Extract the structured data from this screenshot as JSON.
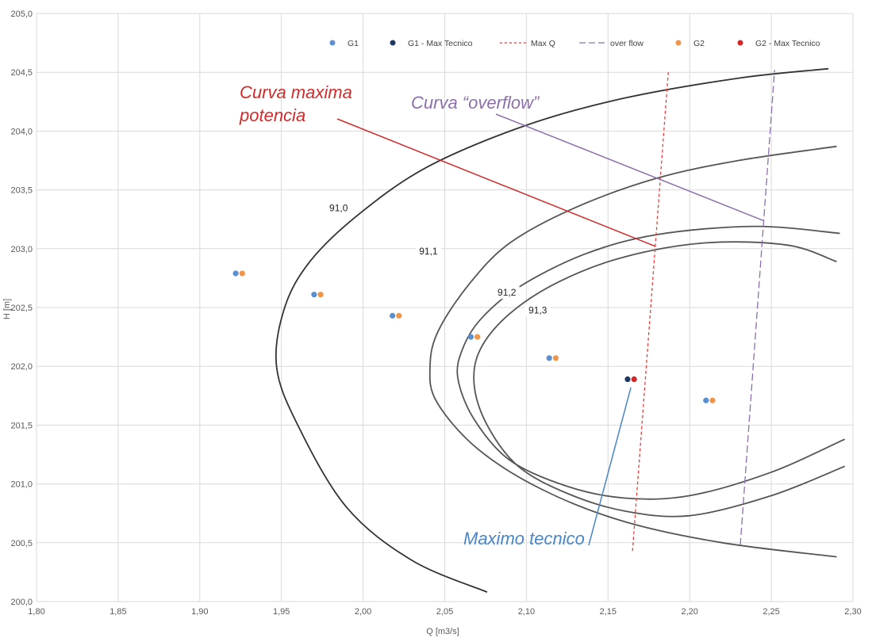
{
  "chart_data": {
    "type": "scatter",
    "title": "",
    "xlabel": "Q [m3/s]",
    "ylabel": "H [m]",
    "xlim": [
      1.8,
      2.3
    ],
    "ylim": [
      200.0,
      205.0
    ],
    "xticks": [
      "1,80",
      "1,85",
      "1,90",
      "1,95",
      "2,00",
      "2,05",
      "2,10",
      "2,15",
      "2,20",
      "2,25",
      "2,30"
    ],
    "yticks": [
      "200,0",
      "200,5",
      "201,0",
      "201,5",
      "202,0",
      "202,5",
      "203,0",
      "203,5",
      "204,0",
      "204,5",
      "205,0"
    ],
    "grid": true,
    "legend_position": "top-right",
    "legend": [
      {
        "name": "G1",
        "kind": "marker",
        "color": "#5b8fd0"
      },
      {
        "name": "G1 - Max Tecnico",
        "kind": "marker",
        "color": "#1f3864"
      },
      {
        "name": "Max Q",
        "kind": "dashed-line",
        "color": "#e8413b"
      },
      {
        "name": "over flow",
        "kind": "dashed-line",
        "color": "#8e6fae"
      },
      {
        "name": "G2",
        "kind": "marker",
        "color": "#f0964a"
      },
      {
        "name": "G2 - Max Tecnico",
        "kind": "marker",
        "color": "#d62728"
      }
    ],
    "series": [
      {
        "name": "G1",
        "color": "#5b8fd0",
        "points": [
          [
            1.922,
            202.79
          ],
          [
            1.97,
            202.61
          ],
          [
            2.018,
            202.43
          ],
          [
            2.066,
            202.25
          ],
          [
            2.114,
            202.07
          ],
          [
            2.21,
            201.71
          ]
        ]
      },
      {
        "name": "G1 - Max Tecnico",
        "color": "#1f3864",
        "points": [
          [
            2.162,
            201.89
          ]
        ]
      },
      {
        "name": "G2",
        "color": "#f0964a",
        "points": [
          [
            1.926,
            202.79
          ],
          [
            1.974,
            202.61
          ],
          [
            2.022,
            202.43
          ],
          [
            2.07,
            202.25
          ],
          [
            2.118,
            202.07
          ],
          [
            2.214,
            201.71
          ]
        ]
      },
      {
        "name": "G2 - Max Tecnico",
        "color": "#d62728",
        "points": [
          [
            2.166,
            201.89
          ]
        ]
      },
      {
        "name": "Max Q",
        "color": "#e8413b",
        "style": "dashed",
        "points": [
          [
            2.165,
            200.43
          ],
          [
            2.187,
            204.52
          ]
        ]
      },
      {
        "name": "over flow",
        "color": "#8e6fae",
        "style": "dashed",
        "points": [
          [
            2.231,
            200.48
          ],
          [
            2.252,
            204.52
          ]
        ]
      }
    ],
    "contours": [
      {
        "label": "91,0",
        "color": "#333333",
        "label_at": [
          1.985,
          203.32
        ],
        "points": [
          [
            2.076,
            200.08
          ],
          [
            2.03,
            200.35
          ],
          [
            1.99,
            200.8
          ],
          [
            1.96,
            201.5
          ],
          [
            1.947,
            202.0
          ],
          [
            1.952,
            202.5
          ],
          [
            1.968,
            202.9
          ],
          [
            1.998,
            203.3
          ],
          [
            2.04,
            203.7
          ],
          [
            2.1,
            204.05
          ],
          [
            2.16,
            204.28
          ],
          [
            2.23,
            204.45
          ],
          [
            2.285,
            204.53
          ]
        ]
      },
      {
        "label": "91,1",
        "color": "#555555",
        "label_at": [
          2.04,
          202.95
        ],
        "points": [
          [
            2.29,
            200.38
          ],
          [
            2.22,
            200.5
          ],
          [
            2.16,
            200.68
          ],
          [
            2.11,
            200.95
          ],
          [
            2.07,
            201.3
          ],
          [
            2.045,
            201.7
          ],
          [
            2.041,
            202.0
          ],
          [
            2.046,
            202.3
          ],
          [
            2.065,
            202.7
          ],
          [
            2.09,
            203.05
          ],
          [
            2.13,
            203.35
          ],
          [
            2.18,
            203.6
          ],
          [
            2.23,
            203.75
          ],
          [
            2.29,
            203.87
          ]
        ]
      },
      {
        "label": "91,2",
        "color": "#555555",
        "label_at": [
          2.088,
          202.6
        ],
        "points": [
          [
            2.295,
            201.38
          ],
          [
            2.25,
            201.1
          ],
          [
            2.2,
            200.9
          ],
          [
            2.16,
            200.88
          ],
          [
            2.125,
            200.98
          ],
          [
            2.09,
            201.2
          ],
          [
            2.068,
            201.55
          ],
          [
            2.058,
            201.9
          ],
          [
            2.061,
            202.15
          ],
          [
            2.072,
            202.4
          ],
          [
            2.095,
            202.67
          ],
          [
            2.135,
            202.95
          ],
          [
            2.18,
            203.12
          ],
          [
            2.24,
            203.19
          ],
          [
            2.292,
            203.13
          ]
        ]
      },
      {
        "label": "91,3",
        "color": "#555555",
        "label_at": [
          2.107,
          202.45
        ],
        "points": [
          [
            2.295,
            201.15
          ],
          [
            2.25,
            200.9
          ],
          [
            2.2,
            200.73
          ],
          [
            2.16,
            200.77
          ],
          [
            2.125,
            200.92
          ],
          [
            2.095,
            201.15
          ],
          [
            2.076,
            201.5
          ],
          [
            2.068,
            201.85
          ],
          [
            2.072,
            202.15
          ],
          [
            2.09,
            202.45
          ],
          [
            2.12,
            202.72
          ],
          [
            2.16,
            202.93
          ],
          [
            2.21,
            203.05
          ],
          [
            2.26,
            203.03
          ],
          [
            2.29,
            202.89
          ]
        ]
      }
    ],
    "annotations": [
      {
        "text": "Curva maxima potencia",
        "lines": [
          "Curva maxima",
          "potencia"
        ],
        "color": "#d22b2b",
        "pointer_to": [
          2.179,
          203.02
        ]
      },
      {
        "text": "Curva “overflow”",
        "lines": [
          "Curva “overflow”"
        ],
        "color": "#8e6fae",
        "pointer_to": [
          2.245,
          203.24
        ]
      },
      {
        "text": "Maximo tecnico",
        "lines": [
          "Maximo tecnico"
        ],
        "color": "#4a86c5",
        "pointer_to": [
          2.164,
          201.82
        ]
      }
    ]
  }
}
